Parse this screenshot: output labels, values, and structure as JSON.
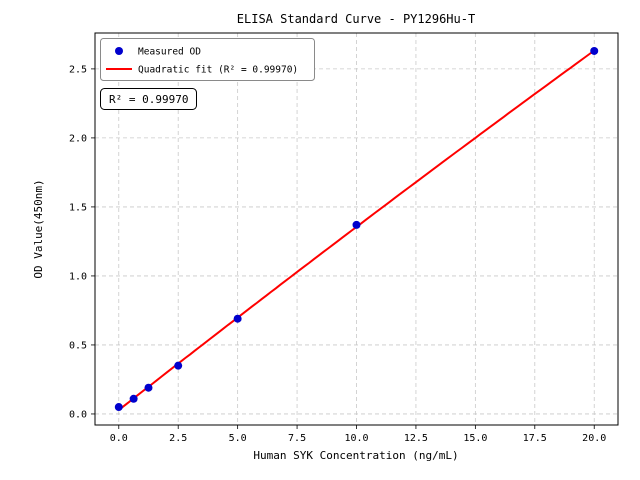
{
  "chart_data": {
    "type": "scatter",
    "title": "ELISA Standard Curve - PY1296Hu-T",
    "xlabel": "Human SYK Concentration (ng/mL)",
    "ylabel": "OD Value(450nm)",
    "xlim": [
      -1,
      21
    ],
    "ylim": [
      -0.08,
      2.76
    ],
    "xticks": [
      0.0,
      2.5,
      5.0,
      7.5,
      10.0,
      12.5,
      15.0,
      17.5,
      20.0
    ],
    "xtick_labels": [
      "0.0",
      "2.5",
      "5.0",
      "7.5",
      "10.0",
      "12.5",
      "15.0",
      "17.5",
      "20.0"
    ],
    "yticks": [
      0.0,
      0.5,
      1.0,
      1.5,
      2.0,
      2.5
    ],
    "ytick_labels": [
      "0.0",
      "0.5",
      "1.0",
      "1.5",
      "2.0",
      "2.5"
    ],
    "grid": true,
    "series": [
      {
        "name": "Measured OD",
        "kind": "scatter",
        "color": "#0000cd",
        "x": [
          0,
          0.625,
          1.25,
          2.5,
          5,
          10,
          20
        ],
        "y": [
          0.05,
          0.11,
          0.19,
          0.35,
          0.69,
          1.37,
          2.63
        ]
      },
      {
        "name": "Quadratic fit (R² = 0.99970)",
        "kind": "quadratic-fit",
        "color": "#ff0000",
        "x_range": [
          0,
          20
        ]
      }
    ],
    "legend": {
      "position": "upper left",
      "entries": [
        {
          "label": "Measured OD",
          "marker": "dot",
          "color": "#0000cd"
        },
        {
          "label": "Quadratic fit (R² = 0.99970)",
          "marker": "line",
          "color": "#ff0000"
        }
      ]
    },
    "annotation": "R² = 0.99970"
  }
}
